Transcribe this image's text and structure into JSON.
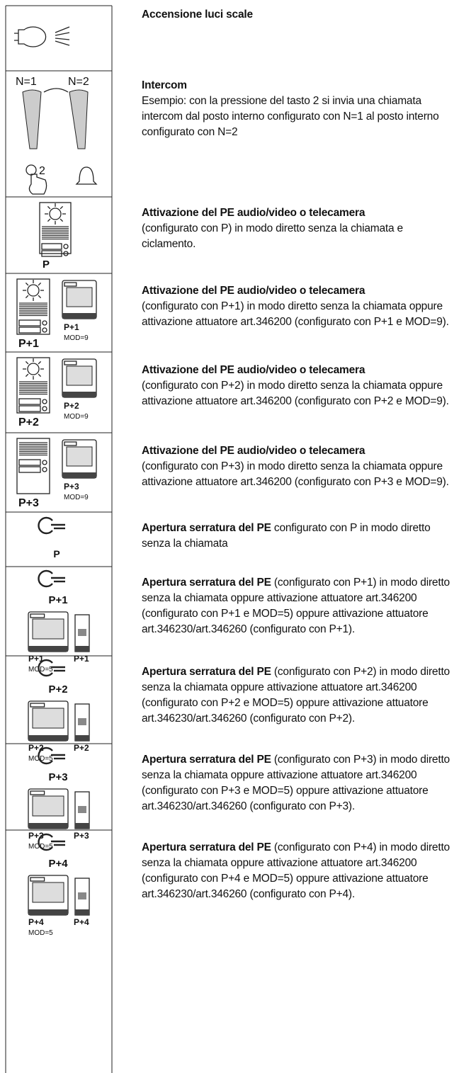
{
  "rows": [
    {
      "icon_labels": [],
      "heading": "Accensione luci scale"
    },
    {
      "icon_labels": [
        "N=1",
        "N=2",
        "2"
      ],
      "heading": "Intercom",
      "body": "Esempio: con la pressione del tasto 2 si invia una chiamata intercom dal posto interno configurato con N=1 al posto interno configurato con N=2"
    },
    {
      "icon_labels": [
        "P"
      ],
      "heading": "Attivazione del PE audio/video o telecamera",
      "body": "(configurato con P) in modo diretto senza la chiamata e ciclamento."
    },
    {
      "icon_labels": [
        "P+1",
        "P+1",
        "MOD=9"
      ],
      "heading": "Attivazione del PE audio/video o telecamera",
      "body": "(configurato con P+1) in modo diretto senza la chiamata oppure attivazione attuatore art.346200 (configurato con P+1 e MOD=9)."
    },
    {
      "icon_labels": [
        "P+2",
        "P+2",
        "MOD=9"
      ],
      "heading": "Attivazione del PE audio/video o telecamera",
      "body": "(configurato con P+2) in modo diretto senza la chiamata oppure attivazione attuatore art.346200 (configurato con P+2 e MOD=9)."
    },
    {
      "icon_labels": [
        "P+3",
        "P+3",
        "MOD=9"
      ],
      "heading": "Attivazione del PE audio/video o telecamera",
      "body": "(configurato con P+3) in modo diretto senza la chiamata oppure attivazione attuatore art.346200 (configurato con P+3 e MOD=9)."
    },
    {
      "icon_labels": [
        "P"
      ],
      "heading": "Apertura serratura del PE",
      "body": "configurato con P in modo diretto senza la chiamata"
    },
    {
      "icon_labels": [
        "P+1",
        "P+1",
        "P+1",
        "MOD=5"
      ],
      "heading": "Apertura serratura del PE",
      "body": "(configurato con P+1) in modo diretto senza la chiamata oppure attivazione attuatore art.346200 (configurato con P+1 e MOD=5) oppure attivazione attuatore art.346230/art.346260 (configurato con P+1)."
    },
    {
      "icon_labels": [
        "P+2",
        "P+2",
        "P+2",
        "MOD=5"
      ],
      "heading": "Apertura serratura del PE",
      "body": "(configurato con P+2) in modo diretto senza la chiamata oppure attivazione attuatore art.346200 (configurato con P+2 e MOD=5) oppure attivazione attuatore art.346230/art.346260 (configurato con P+2)."
    },
    {
      "icon_labels": [
        "P+3",
        "P+3",
        "P+3",
        "MOD=5"
      ],
      "heading": "Apertura serratura del PE",
      "body": "(configurato con P+3) in modo diretto senza la chiamata oppure attivazione attuatore art.346200 (configurato con P+3 e MOD=5) oppure attivazione attuatore art.346230/art.346260 (configurato con P+3)."
    },
    {
      "icon_labels": [
        "P+4",
        "P+4",
        "P+4",
        "MOD=5"
      ],
      "heading": "Apertura serratura del PE",
      "body": "(configurato con P+4) in modo diretto senza la chiamata oppure attivazione attuatore art.346200 (configurato con P+4 e MOD=5) oppure attivazione attuatore art.346230/art.346260 (configurato con P+4)."
    }
  ]
}
